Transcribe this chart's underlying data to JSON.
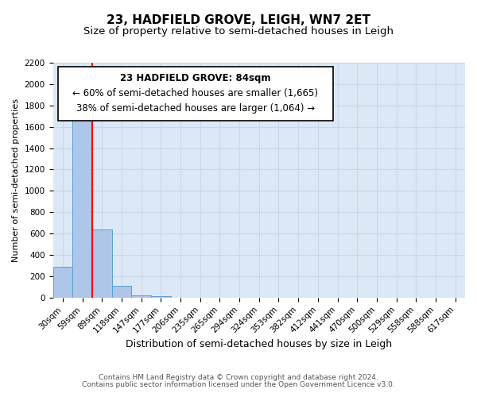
{
  "title": "23, HADFIELD GROVE, LEIGH, WN7 2ET",
  "subtitle": "Size of property relative to semi-detached houses in Leigh",
  "xlabel": "Distribution of semi-detached houses by size in Leigh",
  "ylabel": "Number of semi-detached properties",
  "footnote1": "Contains HM Land Registry data © Crown copyright and database right 2024.",
  "footnote2": "Contains public sector information licensed under the Open Government Licence v3.0.",
  "bin_labels": [
    "30sqm",
    "59sqm",
    "89sqm",
    "118sqm",
    "147sqm",
    "177sqm",
    "206sqm",
    "235sqm",
    "265sqm",
    "294sqm",
    "324sqm",
    "353sqm",
    "382sqm",
    "412sqm",
    "441sqm",
    "470sqm",
    "500sqm",
    "529sqm",
    "558sqm",
    "588sqm",
    "617sqm"
  ],
  "bar_values": [
    290,
    1730,
    640,
    110,
    25,
    15,
    0,
    0,
    0,
    0,
    0,
    0,
    0,
    0,
    0,
    0,
    0,
    0,
    0,
    0,
    0
  ],
  "bar_color": "#aec6e8",
  "bar_edge_color": "#5a9fd4",
  "grid_color": "#c8d8e8",
  "background_color": "#dce8f5",
  "red_line_bin": 2,
  "annotation_line1": "23 HADFIELD GROVE: 84sqm",
  "annotation_line2": "← 60% of semi-detached houses are smaller (1,665)",
  "annotation_line3": "38% of semi-detached houses are larger (1,064) →",
  "ylim": [
    0,
    2200
  ],
  "yticks": [
    0,
    200,
    400,
    600,
    800,
    1000,
    1200,
    1400,
    1600,
    1800,
    2000,
    2200
  ],
  "title_fontsize": 11,
  "subtitle_fontsize": 9.5,
  "xlabel_fontsize": 9,
  "ylabel_fontsize": 8,
  "tick_fontsize": 7.5,
  "annotation_fontsize": 8.5,
  "footnote_fontsize": 6.5
}
